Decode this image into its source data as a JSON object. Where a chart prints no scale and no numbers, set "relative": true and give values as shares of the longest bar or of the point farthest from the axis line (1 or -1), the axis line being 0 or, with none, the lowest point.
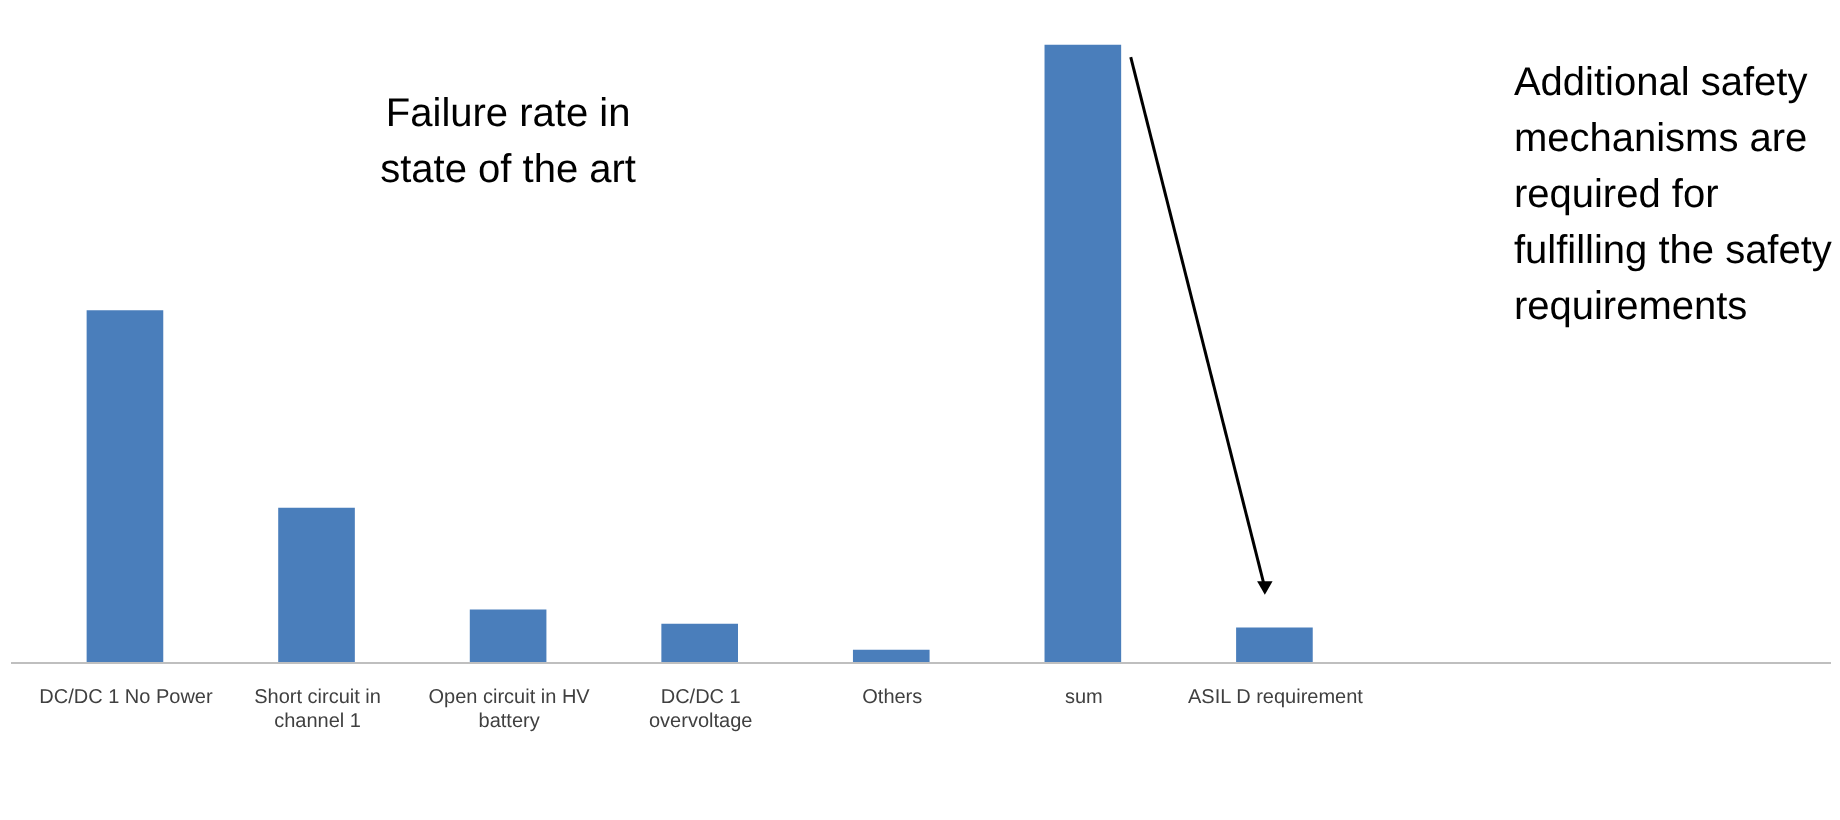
{
  "chart_data": {
    "type": "bar",
    "relative": true,
    "categories": [
      "DC/DC 1 No Power",
      "Short circuit in channel 1",
      "Open circuit in HV battery",
      "DC/DC 1 overvoltage",
      "Others",
      "sum",
      "ASIL D requirement"
    ],
    "values": [
      0.57,
      0.25,
      0.085,
      0.062,
      0.02,
      1,
      0.056
    ],
    "color": "#4a7ebb",
    "annotations": [
      "Failure rate in state of the art",
      "Additional safety mechanisms are required for fulfilling the safety requirements"
    ]
  }
}
